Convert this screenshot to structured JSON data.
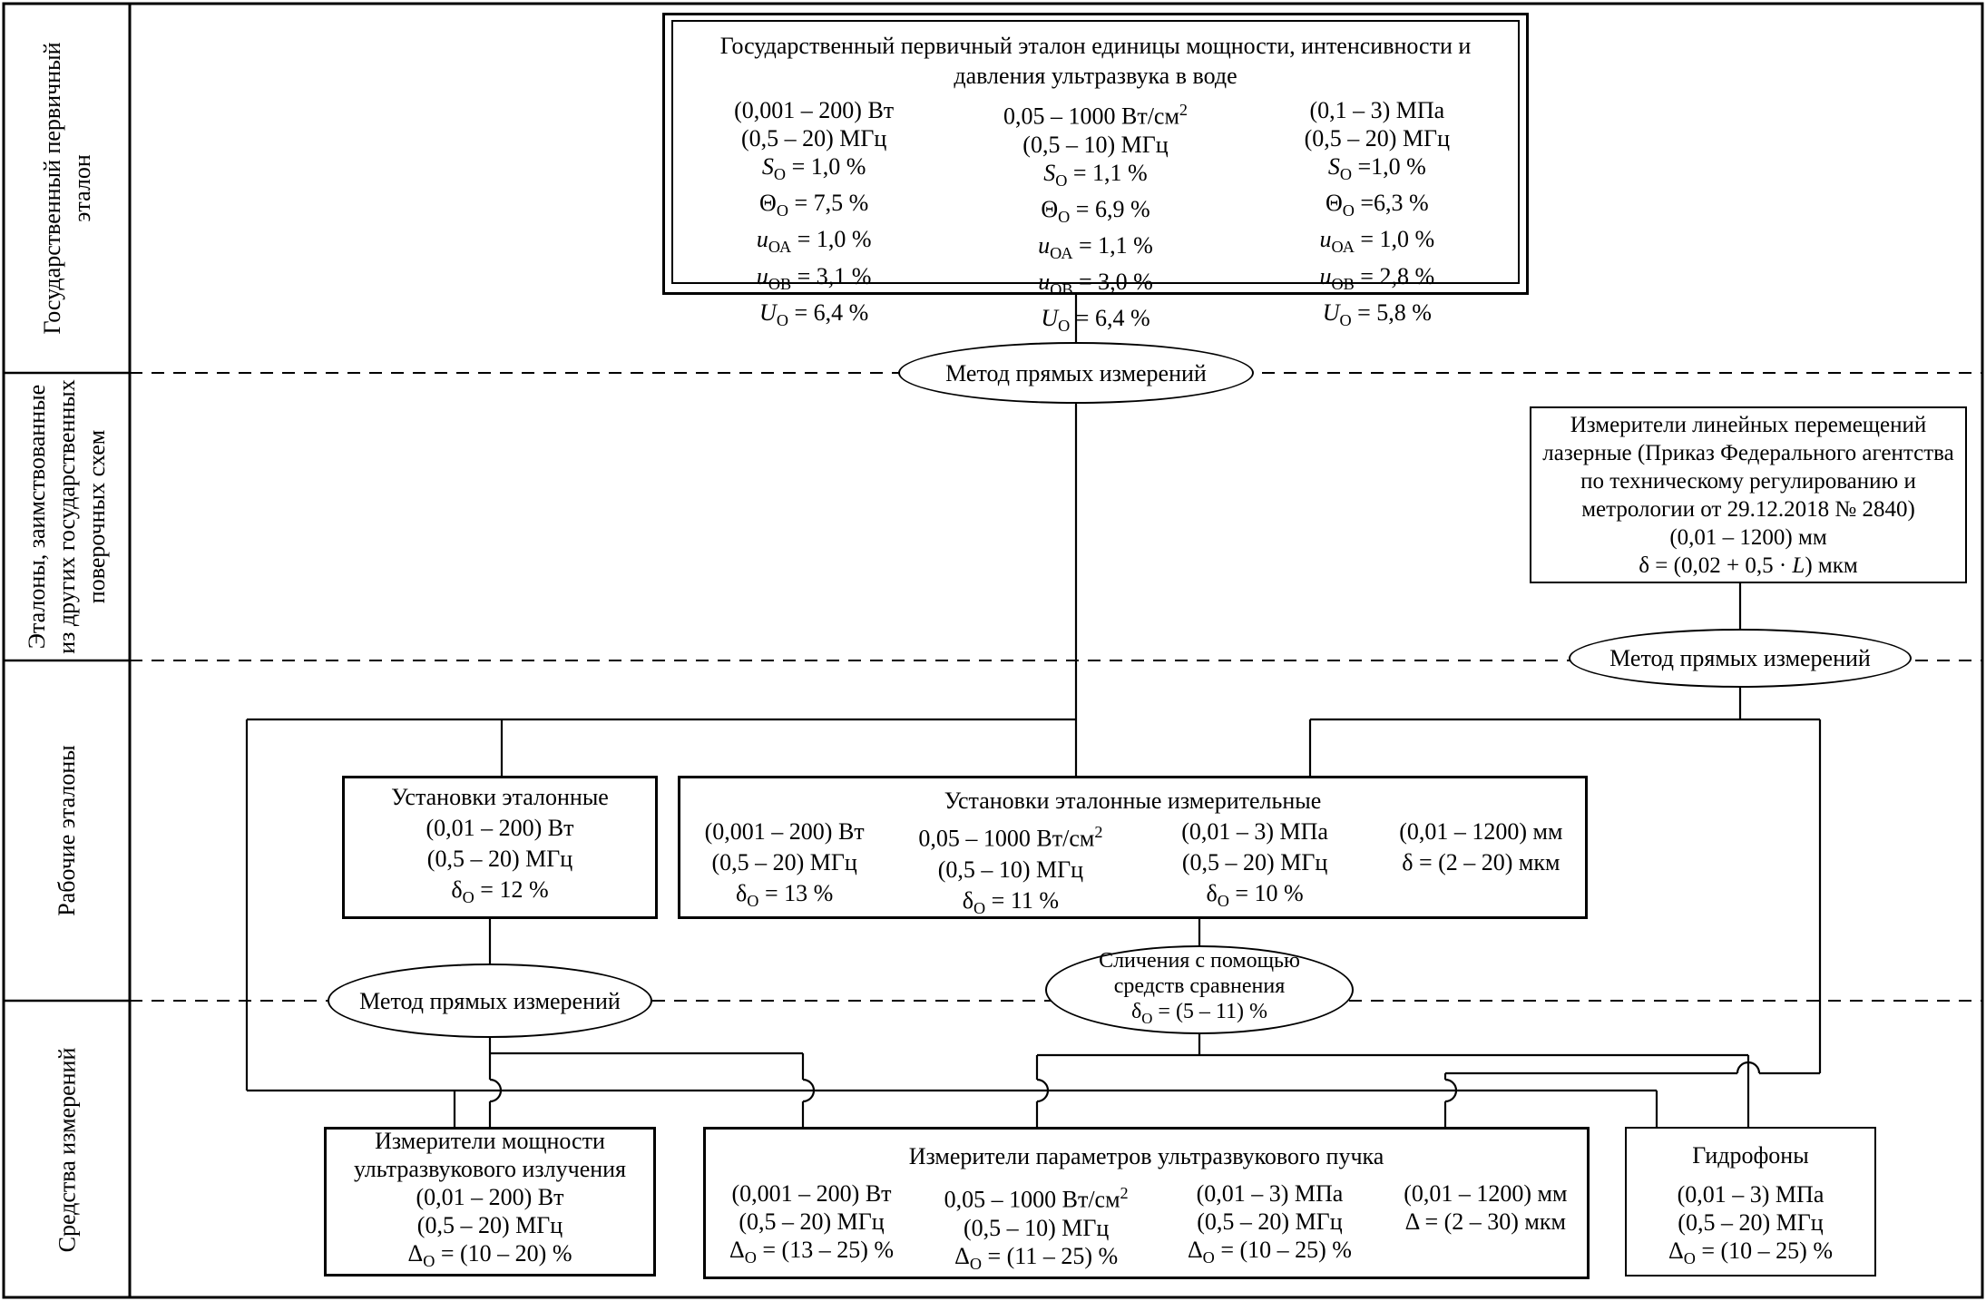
{
  "sidebar": {
    "rows": [
      {
        "label": "Государственный первичный эталон"
      },
      {
        "label": "Эталоны, заимствованные из других государственных поверочных схем"
      },
      {
        "label": "Рабочие эталоны"
      },
      {
        "label": "Средства измерений"
      }
    ]
  },
  "labels": {
    "method_direct": "Метод прямых измерений",
    "comparison": [
      "Сличения с помощью",
      "средств сравнения",
      "δ<sub>О</sub> = (5 – 11) %"
    ]
  },
  "boxes": {
    "primary": {
      "title": [
        "Государственный первичный эталон единицы мощности, интенсивности и",
        "давления ультразвука в воде"
      ],
      "columns": [
        {
          "lines": [
            "(0,001 – 200) Вт",
            "(0,5 – 20) МГц",
            "<i>S</i><sub>О</sub> = 1,0 %",
            "Θ<sub>О</sub> = 7,5 %",
            "<i>u</i><sub>ОА</sub> = 1,0 %",
            "<i>u</i><sub>ОВ</sub> = 3,1 %",
            "<i>U</i><sub>О</sub> = 6,4 %"
          ]
        },
        {
          "lines": [
            "0,05 – 1000 Вт/см<sup>2</sup>",
            "(0,5 – 10) МГц",
            "<i>S</i><sub>О</sub> = 1,1 %",
            "Θ<sub>О</sub> = 6,9 %",
            "<i>u</i><sub>ОА</sub> = 1,1 %",
            "<i>u</i><sub>ОВ</sub> = 3,0 %",
            "<i>U</i><sub>О</sub> = 6,4 %"
          ]
        },
        {
          "lines": [
            "(0,1 – 3) МПа",
            "(0,5 – 20) МГц",
            "<i>S</i><sub>О</sub> =1,0 %",
            "Θ<sub>О</sub> =6,3 %",
            "<i>u</i><sub>ОА</sub> = 1,0 %",
            "<i>u</i><sub>ОВ</sub> = 2,8 %",
            "<i>U</i><sub>О</sub> = 5,8 %"
          ]
        }
      ]
    },
    "laser": {
      "lines": [
        "Измерители линейных перемещений",
        "лазерные (Приказ Федерального агентства",
        "по техническому регулированию и",
        "метрологии от 29.12.2018 № 2840)",
        "(0,01 – 1200) мм",
        "δ = (0,02 + 0,5 · <i>L</i>) мкм"
      ]
    },
    "work_std_small": {
      "title": "Установки эталонные",
      "lines": [
        "(0,01 – 200) Вт",
        "(0,5 – 20) МГц",
        "δ<sub>О</sub> = 12 %"
      ]
    },
    "work_std_wide": {
      "title": "Установки эталонные измерительные",
      "columns": [
        {
          "lines": [
            "(0,001 – 200) Вт",
            "(0,5 – 20) МГц",
            "δ<sub>О</sub> = 13 %"
          ]
        },
        {
          "lines": [
            "0,05 – 1000 Вт/см<sup>2</sup>",
            "(0,5 – 10) МГц",
            "δ<sub>О</sub> = 11 %"
          ]
        },
        {
          "lines": [
            "(0,01 – 3) МПа",
            "(0,5 – 20) МГц",
            "δ<sub>О</sub> = 10 %"
          ]
        },
        {
          "lines": [
            "(0,01 – 1200) мм",
            "δ = (2 – 20) мкм"
          ]
        }
      ]
    },
    "power_meters": {
      "title": [
        "Измерители мощности",
        "ультразвукового излучения"
      ],
      "lines": [
        "(0,01 – 200) Вт",
        "(0,5 – 20) МГц",
        "Δ<sub>О</sub> = (10 – 20) %"
      ]
    },
    "beam_meters": {
      "title": "Измерители параметров ультразвукового пучка",
      "columns": [
        {
          "lines": [
            "(0,001 – 200) Вт",
            "(0,5 – 20) МГц",
            "Δ<sub>О</sub> = (13 – 25) %"
          ]
        },
        {
          "lines": [
            "0,05 – 1000 Вт/см<sup>2</sup>",
            "(0,5 – 10) МГц",
            "Δ<sub>О</sub> = (11 – 25) %"
          ]
        },
        {
          "lines": [
            "(0,01 – 3) МПа",
            "(0,5 – 20) МГц",
            "Δ<sub>О</sub> = (10 – 25) %"
          ]
        },
        {
          "lines": [
            "(0,01 – 1200) мм",
            "Δ = (2 – 30) мкм"
          ]
        }
      ]
    },
    "hydrophones": {
      "title": "Гидрофоны",
      "lines": [
        "(0,01 – 3) МПа",
        "(0,5 – 20) МГц",
        "Δ<sub>О</sub> = (10 – 25) %"
      ]
    }
  },
  "colors": {
    "line": "#000000",
    "background": "#ffffff"
  }
}
